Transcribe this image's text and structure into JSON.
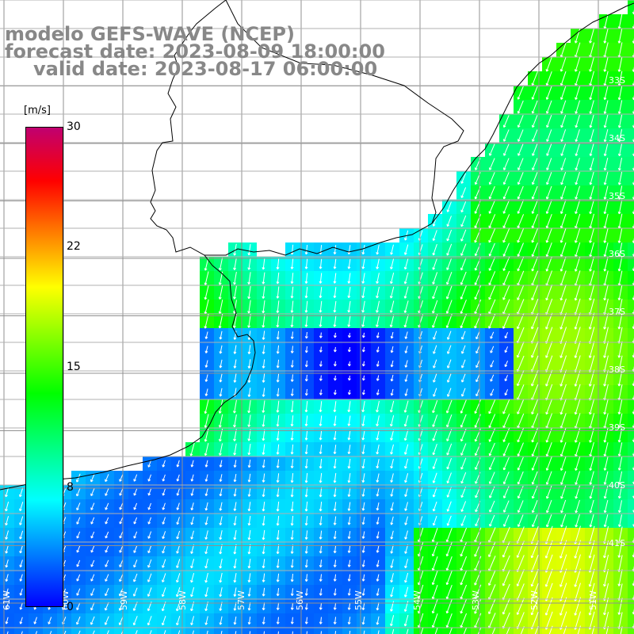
{
  "header": {
    "model": "modelo GEFS-WAVE (NCEP)",
    "forecast": "forecast date: 2023-08-09 18:00:00",
    "valid": "valid date: 2023-08-17 06:00:00"
  },
  "colorbar": {
    "unit": "[m/s]",
    "ticks": [
      "30",
      "22",
      "15",
      "8",
      "0"
    ],
    "colors": [
      "#0000ff",
      "#0080ff",
      "#00ffff",
      "#00ff80",
      "#00ff00",
      "#80ff00",
      "#ffff00",
      "#ff8000",
      "#ff0000",
      "#c00070"
    ]
  },
  "lat_labels": [
    "33S",
    "34S",
    "35S",
    "36S",
    "37S",
    "38S",
    "39S",
    "40S",
    "41S"
  ],
  "lon_labels": [
    "61W",
    "60W",
    "59W",
    "58W",
    "57W",
    "56W",
    "55W",
    "54W",
    "53W",
    "52W",
    "51W"
  ],
  "colors": {
    "land": "#ffffff",
    "grid": "#909090",
    "coast": "#000000",
    "arrow": "#ffffff"
  }
}
